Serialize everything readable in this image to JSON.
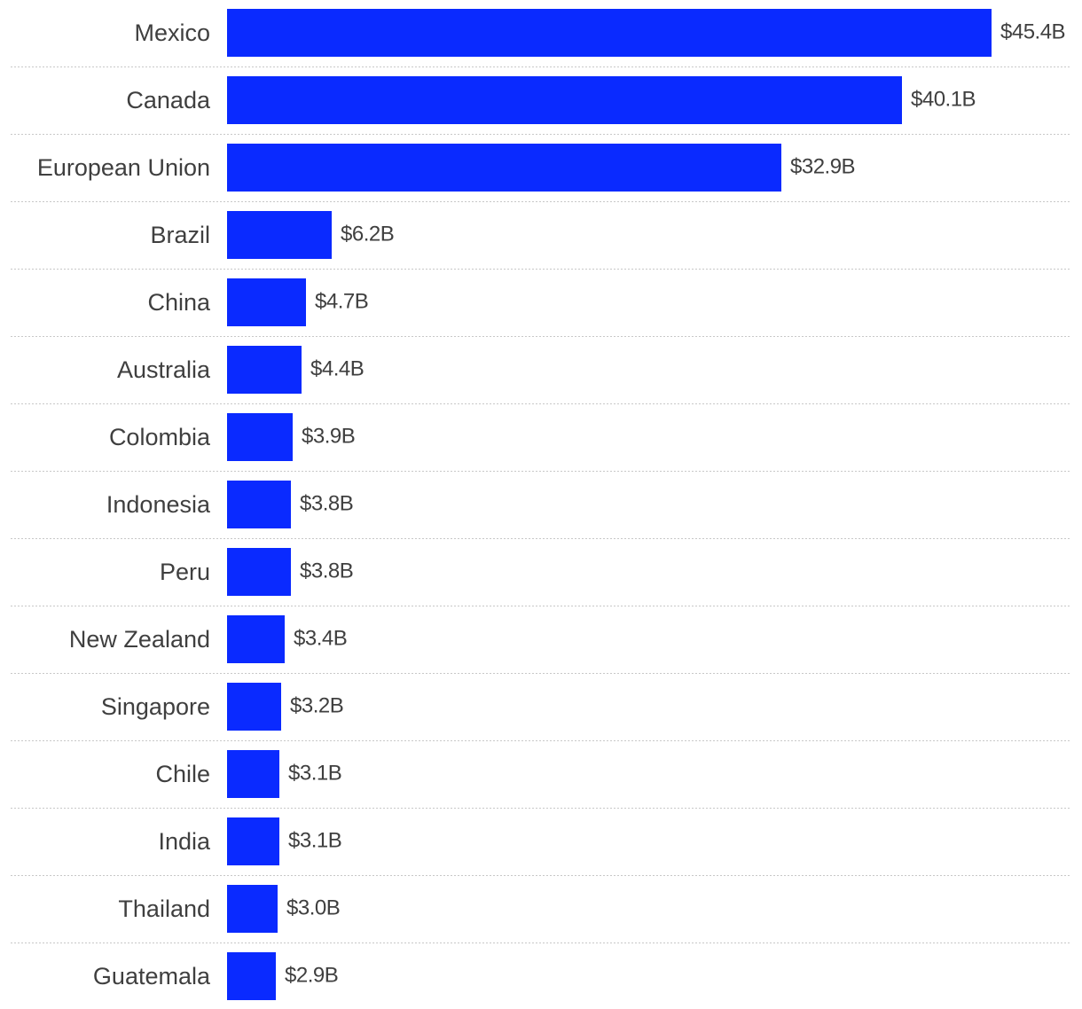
{
  "chart_data": {
    "type": "bar",
    "orientation": "horizontal",
    "categories": [
      "Mexico",
      "Canada",
      "European Union",
      "Brazil",
      "China",
      "Australia",
      "Colombia",
      "Indonesia",
      "Peru",
      "New Zealand",
      "Singapore",
      "Chile",
      "India",
      "Thailand",
      "Guatemala"
    ],
    "values": [
      45.4,
      40.1,
      32.9,
      6.2,
      4.7,
      4.4,
      3.9,
      3.8,
      3.8,
      3.4,
      3.2,
      3.1,
      3.1,
      3.0,
      2.9
    ],
    "value_labels": [
      "$45.4B",
      "$40.1B",
      "$32.9B",
      "$6.2B",
      "$4.7B",
      "$4.4B",
      "$3.9B",
      "$3.8B",
      "$3.8B",
      "$3.4B",
      "$3.2B",
      "$3.1B",
      "$3.1B",
      "$3.0B",
      "$2.9B"
    ],
    "title": "",
    "xlabel": "",
    "ylabel": "",
    "xlim": [
      0,
      45.4
    ],
    "grid": false,
    "legend": "none",
    "bar_color": "#0a2aff",
    "separator_style": "dotted"
  }
}
